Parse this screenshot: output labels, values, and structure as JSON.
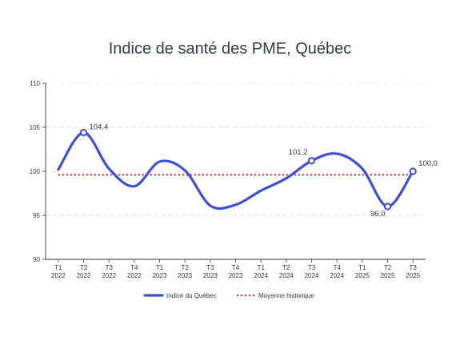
{
  "chart_data": {
    "type": "line",
    "title": "Indice de santé des PME, Québec",
    "xlabel": "",
    "ylabel": "",
    "ylim": [
      90,
      110
    ],
    "yticks": [
      90,
      95,
      100,
      105,
      110
    ],
    "categories": [
      [
        "T1",
        "2022"
      ],
      [
        "T2",
        "2022"
      ],
      [
        "T3",
        "2022"
      ],
      [
        "T4",
        "2022"
      ],
      [
        "T1",
        "2023"
      ],
      [
        "T2",
        "2023"
      ],
      [
        "T3",
        "2023"
      ],
      [
        "T4",
        "2023"
      ],
      [
        "T1",
        "2024"
      ],
      [
        "T2",
        "2024"
      ],
      [
        "T3",
        "2024"
      ],
      [
        "T4",
        "2024"
      ],
      [
        "T1",
        "2025"
      ],
      [
        "T2",
        "2025"
      ],
      [
        "T3",
        "2025"
      ]
    ],
    "series": [
      {
        "name": "Indice du Québec",
        "color": "#3b4fd8",
        "values": [
          100.2,
          104.4,
          100.3,
          98.3,
          101.1,
          100.1,
          96.1,
          96.2,
          97.8,
          99.2,
          101.2,
          102.0,
          100.3,
          96.0,
          100.0
        ]
      },
      {
        "name": "Moyenne historique",
        "color": "#d62020",
        "style": "dotted",
        "values": [
          99.6,
          99.6,
          99.6,
          99.6,
          99.6,
          99.6,
          99.6,
          99.6,
          99.6,
          99.6,
          99.6,
          99.6,
          99.6,
          99.6,
          99.6
        ]
      }
    ],
    "data_labels": [
      {
        "index": 1,
        "text": "104,4"
      },
      {
        "index": 10,
        "text": "101,2"
      },
      {
        "index": 13,
        "text": "96,0"
      },
      {
        "index": 14,
        "text": "100,0"
      }
    ],
    "grid": "horizontal dashed",
    "legend_position": "bottom"
  }
}
